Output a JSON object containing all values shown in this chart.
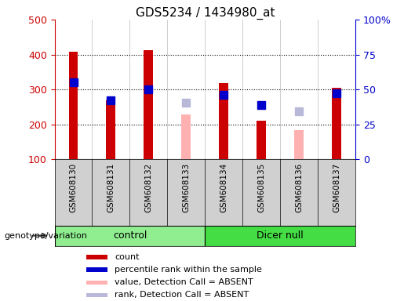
{
  "title": "GDS5234 / 1434980_at",
  "samples": [
    "GSM608130",
    "GSM608131",
    "GSM608132",
    "GSM608133",
    "GSM608134",
    "GSM608135",
    "GSM608136",
    "GSM608137"
  ],
  "groups": [
    "control",
    "control",
    "control",
    "control",
    "Dicer null",
    "Dicer null",
    "Dicer null",
    "Dicer null"
  ],
  "count_values": [
    408,
    268,
    413,
    null,
    318,
    210,
    null,
    305
  ],
  "percentile_values": [
    320,
    270,
    300,
    null,
    285,
    255,
    null,
    290
  ],
  "absent_value_values": [
    null,
    null,
    null,
    228,
    null,
    null,
    184,
    null
  ],
  "absent_rank_values": [
    null,
    null,
    null,
    262,
    null,
    null,
    237,
    null
  ],
  "ylim_left": [
    100,
    500
  ],
  "ylim_right": [
    0,
    100
  ],
  "left_yticks": [
    100,
    200,
    300,
    400,
    500
  ],
  "right_yticks": [
    0,
    25,
    50,
    75,
    100
  ],
  "right_yticklabels": [
    "0",
    "25",
    "50",
    "75",
    "100%"
  ],
  "bar_color_count": "#cc0000",
  "bar_color_percentile": "#0000cc",
  "bar_color_absent_value": "#ffb0b0",
  "bar_color_absent_rank": "#b8b8d8",
  "group_color_control": "#90ee90",
  "group_color_dicer": "#44dd44",
  "legend_items": [
    {
      "label": "count",
      "color": "#cc0000"
    },
    {
      "label": "percentile rank within the sample",
      "color": "#0000cc"
    },
    {
      "label": "value, Detection Call = ABSENT",
      "color": "#ffb0b0"
    },
    {
      "label": "rank, Detection Call = ABSENT",
      "color": "#b8b8d8"
    }
  ],
  "bar_width": 0.25,
  "marker_size": 7,
  "bg_gray": "#d0d0d0",
  "chart_bg": "#ffffff"
}
